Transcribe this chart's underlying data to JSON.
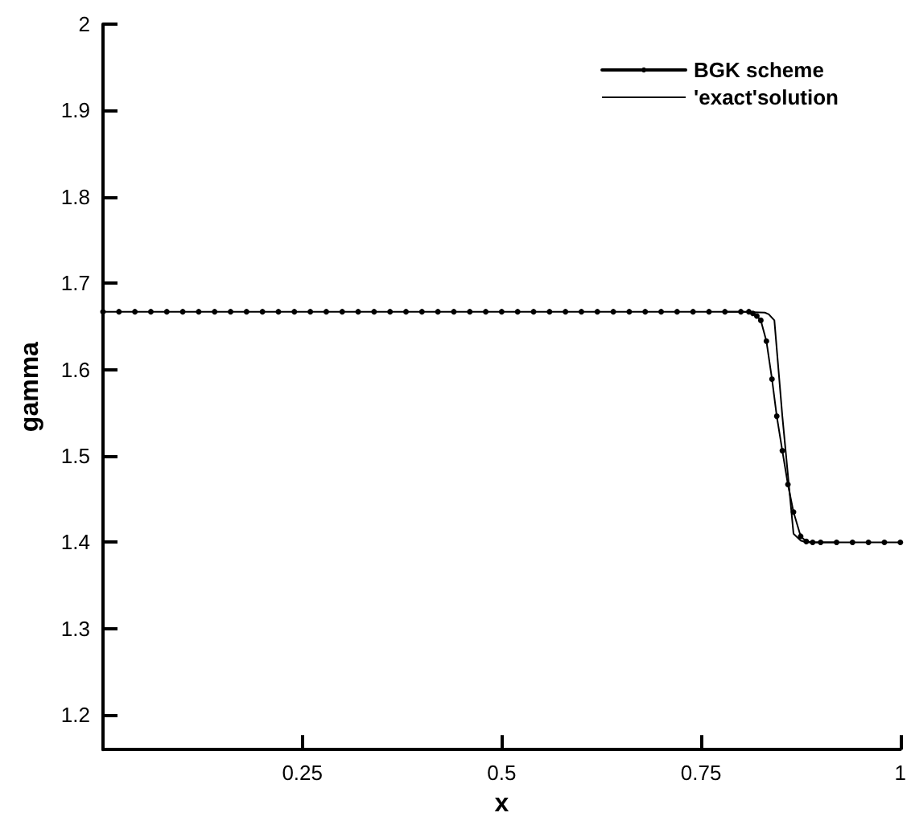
{
  "chart_data": {
    "type": "line",
    "xlabel": "x",
    "ylabel": "gamma",
    "xlim": [
      0,
      1
    ],
    "ylim": [
      1.16,
      2
    ],
    "xticks": [
      0.25,
      0.5,
      0.75,
      1
    ],
    "yticks": [
      1.2,
      1.3,
      1.4,
      1.5,
      1.6,
      1.7,
      1.8,
      1.9,
      2
    ],
    "grid": false,
    "legend": "top right",
    "series": [
      {
        "name": "BGK scheme",
        "color": "#000000",
        "marker": "circle",
        "x": [
          0,
          0.02,
          0.04,
          0.06,
          0.08,
          0.1,
          0.12,
          0.14,
          0.16,
          0.18,
          0.2,
          0.22,
          0.24,
          0.26,
          0.28,
          0.3,
          0.32,
          0.34,
          0.36,
          0.38,
          0.4,
          0.42,
          0.44,
          0.46,
          0.48,
          0.5,
          0.52,
          0.54,
          0.56,
          0.58,
          0.6,
          0.62,
          0.64,
          0.66,
          0.68,
          0.7,
          0.72,
          0.74,
          0.76,
          0.78,
          0.8,
          0.81,
          0.815,
          0.82,
          0.825,
          0.832,
          0.839,
          0.845,
          0.852,
          0.859,
          0.866,
          0.875,
          0.882,
          0.89,
          0.9,
          0.92,
          0.94,
          0.96,
          0.98,
          1
        ],
        "values": [
          1.667,
          1.667,
          1.667,
          1.667,
          1.667,
          1.667,
          1.667,
          1.667,
          1.667,
          1.667,
          1.667,
          1.667,
          1.667,
          1.667,
          1.667,
          1.667,
          1.667,
          1.667,
          1.667,
          1.667,
          1.667,
          1.667,
          1.667,
          1.667,
          1.667,
          1.667,
          1.667,
          1.667,
          1.667,
          1.667,
          1.667,
          1.667,
          1.667,
          1.667,
          1.667,
          1.667,
          1.667,
          1.667,
          1.667,
          1.667,
          1.667,
          1.667,
          1.665,
          1.662,
          1.657,
          1.633,
          1.589,
          1.546,
          1.506,
          1.467,
          1.435,
          1.407,
          1.401,
          1.4,
          1.4,
          1.4,
          1.4,
          1.4,
          1.4,
          1.4
        ]
      },
      {
        "name": "'exact'solution",
        "color": "#000000",
        "marker": "none",
        "x": [
          0.78,
          0.8,
          0.83,
          0.835,
          0.842,
          0.852,
          0.866,
          0.875,
          0.882,
          0.9,
          0.92
        ],
        "values": [
          1.667,
          1.667,
          1.666,
          1.664,
          1.657,
          1.546,
          1.41,
          1.402,
          1.4,
          1.4,
          1.4
        ]
      }
    ]
  }
}
